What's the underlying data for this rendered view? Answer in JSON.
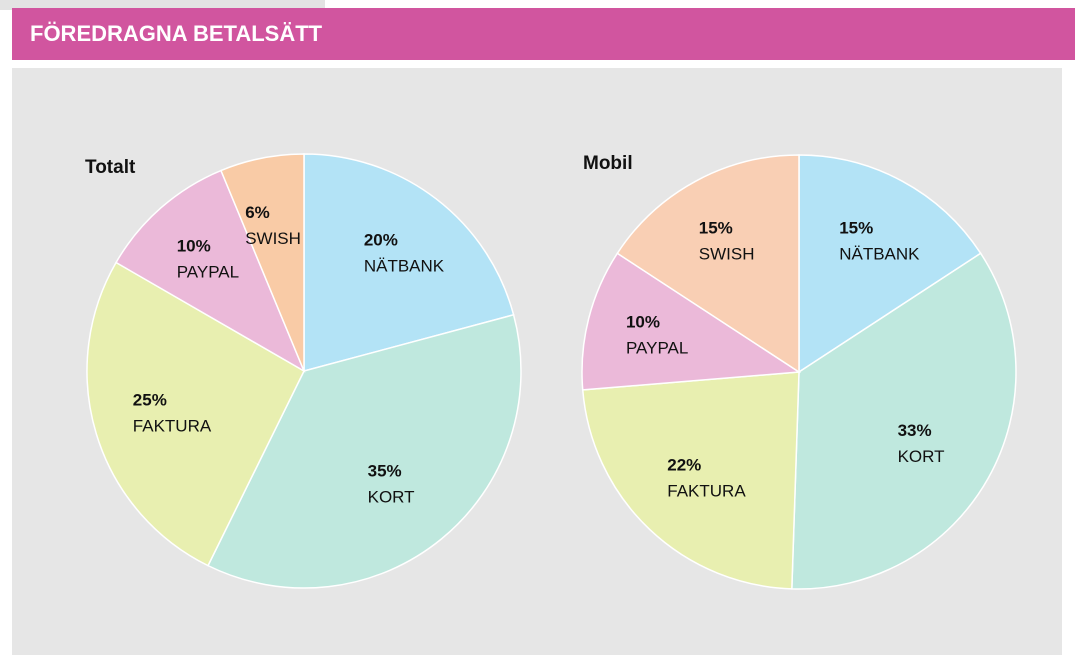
{
  "title": "FÖREDRAGNA BETALSÄTT",
  "chart_data": [
    {
      "type": "pie",
      "title": "Totalt",
      "categories": [
        "NÄTBANK",
        "KORT",
        "FAKTURA",
        "PAYPAL",
        "SWISH"
      ],
      "values": [
        20,
        35,
        25,
        10,
        6
      ],
      "value_labels": [
        "20%",
        "35%",
        "25%",
        "10%",
        "6%"
      ],
      "colors": [
        "#b3e3f6",
        "#bfe8de",
        "#e8efb0",
        "#ebb9d9",
        "#f9cba6"
      ]
    },
    {
      "type": "pie",
      "title": "Mobil",
      "categories": [
        "NÄTBANK",
        "KORT",
        "FAKTURA",
        "PAYPAL",
        "SWISH"
      ],
      "values": [
        15,
        33,
        22,
        10,
        15
      ],
      "value_labels": [
        "15%",
        "33%",
        "22%",
        "10%",
        "15%"
      ],
      "colors": [
        "#b3e3f6",
        "#bfe8de",
        "#e8efb0",
        "#ebb9d9",
        "#f9cfb4"
      ]
    }
  ]
}
